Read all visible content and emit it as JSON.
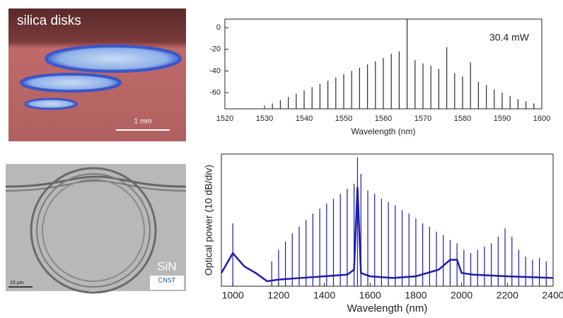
{
  "images": [
    {
      "label": "silica disks",
      "scale_bar": "1 mm"
    },
    {
      "label": "SiN",
      "scale_bar": "10 µm",
      "logo": "CNST"
    }
  ],
  "chart_data": [
    {
      "type": "comb",
      "xlabel": "Wavelength (nm)",
      "annotation": "30.4 mW",
      "xlim": [
        1520,
        1600
      ],
      "xticks": [
        1520,
        1530,
        1540,
        1550,
        1560,
        1570,
        1580,
        1590,
        1600
      ],
      "ylim": [
        -75,
        8
      ],
      "yticks": [
        0,
        -20,
        -40,
        -60
      ],
      "series": [
        {
          "style": "comb",
          "color": "#2b2b2b",
          "x": [
            1532,
            1534,
            1536,
            1538,
            1540,
            1542,
            1544,
            1546,
            1548,
            1550,
            1552,
            1554,
            1556,
            1558,
            1560,
            1562,
            1564,
            1566,
            1568,
            1570,
            1572,
            1574,
            1576,
            1578,
            1580,
            1582,
            1584,
            1586,
            1588,
            1590,
            1592,
            1594,
            1596,
            1598
          ],
          "values": [
            -70,
            -67,
            -64,
            -61,
            -58,
            -55,
            -52,
            -49,
            -46,
            -43,
            -40,
            -37,
            -34,
            -31,
            -28,
            -24,
            -22,
            8,
            -30,
            -33,
            -35,
            -38,
            -18,
            -42,
            -45,
            -32,
            -50,
            -53,
            -57,
            -60,
            -63,
            -66,
            -68,
            -70
          ]
        }
      ]
    },
    {
      "type": "comb",
      "xlabel": "Wavelength (nm)",
      "ylabel": "Optical power (10 dB/div)",
      "xlim": [
        950,
        2400
      ],
      "xticks": [
        1000,
        1200,
        1400,
        1600,
        1800,
        2000,
        2200,
        2400
      ],
      "ylim": [
        -80,
        0
      ],
      "series": [
        {
          "style": "comb",
          "color": "#1c1ca8",
          "x": [
            1000,
            1170,
            1200,
            1230,
            1260,
            1290,
            1320,
            1350,
            1380,
            1410,
            1440,
            1470,
            1500,
            1530,
            1545,
            1560,
            1590,
            1620,
            1650,
            1680,
            1710,
            1740,
            1770,
            1800,
            1830,
            1860,
            1890,
            1920,
            1950,
            1980,
            2010,
            2040,
            2070,
            2100,
            2130,
            2160,
            2190,
            2220,
            2250,
            2280,
            2310,
            2340,
            2370
          ],
          "values": [
            -42,
            -65,
            -58,
            -53,
            -48,
            -44,
            -40,
            -36,
            -33,
            -30,
            -27,
            -24,
            -21,
            -18,
            -2,
            -12,
            -22,
            -24,
            -27,
            -29,
            -31,
            -34,
            -36,
            -39,
            -42,
            -44,
            -47,
            -49,
            -52,
            -54,
            -58,
            -60,
            -58,
            -56,
            -54,
            -50,
            -45,
            -50,
            -58,
            -62,
            -64,
            -63,
            -65
          ]
        },
        {
          "style": "line",
          "color": "#1c1ca8",
          "x": [
            950,
            1000,
            1050,
            1100,
            1150,
            1200,
            1300,
            1400,
            1500,
            1530,
            1545,
            1560,
            1600,
            1700,
            1800,
            1900,
            1950,
            1980,
            2000,
            2050,
            2200,
            2400
          ],
          "values": [
            -72,
            -60,
            -68,
            -72,
            -77,
            -76,
            -75,
            -74,
            -73,
            -70,
            -20,
            -72,
            -74,
            -75,
            -74,
            -70,
            -64,
            -64,
            -72,
            -73,
            -74,
            -75
          ]
        }
      ]
    }
  ]
}
